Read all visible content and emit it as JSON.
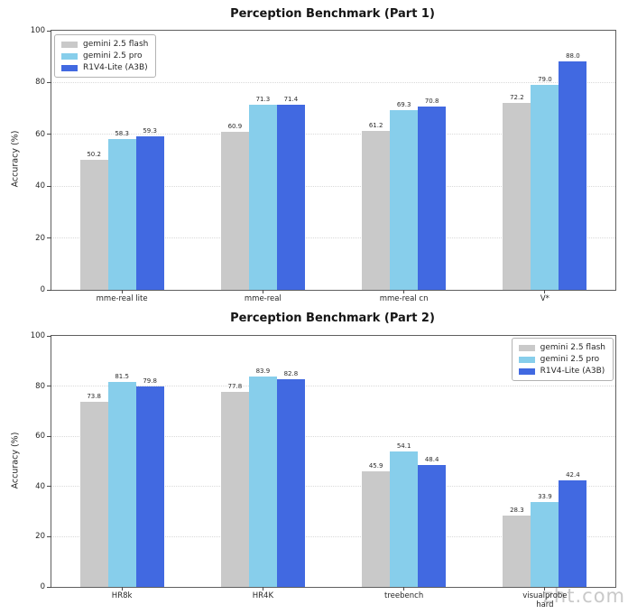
{
  "watermark": {
    "text": "zht.com"
  },
  "chart_data": [
    {
      "type": "bar",
      "title": "Perception Benchmark (Part 1)",
      "ylabel": "Accuracy (%)",
      "ylim": [
        0,
        100
      ],
      "yticks": [
        0,
        20,
        40,
        60,
        80,
        100
      ],
      "grid": "dotted-horizontal",
      "legend_position": "upper-left",
      "categories": [
        "mme-real lite",
        "mme-real",
        "mme-real cn",
        "V*"
      ],
      "series": [
        {
          "name": "gemini 2.5 flash",
          "color": "#c9c9c9",
          "values": [
            50.2,
            60.9,
            61.2,
            72.2
          ]
        },
        {
          "name": "gemini 2.5 pro",
          "color": "#87ceeb",
          "values": [
            58.3,
            71.3,
            69.3,
            79.0
          ]
        },
        {
          "name": "R1V4-Lite (A3B)",
          "color": "#4169e1",
          "values": [
            59.3,
            71.4,
            70.8,
            88.0
          ]
        }
      ]
    },
    {
      "type": "bar",
      "title": "Perception Benchmark (Part 2)",
      "ylabel": "Accuracy (%)",
      "ylim": [
        0,
        100
      ],
      "yticks": [
        0,
        20,
        40,
        60,
        80,
        100
      ],
      "grid": "dotted-horizontal",
      "legend_position": "upper-right",
      "categories": [
        "HR8k",
        "HR4K",
        "treebench",
        "visualprobe\nhard"
      ],
      "series": [
        {
          "name": "gemini 2.5 flash",
          "color": "#c9c9c9",
          "values": [
            73.8,
            77.8,
            45.9,
            28.3
          ]
        },
        {
          "name": "gemini 2.5 pro",
          "color": "#87ceeb",
          "values": [
            81.5,
            83.9,
            54.1,
            33.9
          ]
        },
        {
          "name": "R1V4-Lite (A3B)",
          "color": "#4169e1",
          "values": [
            79.8,
            82.8,
            48.4,
            42.4
          ]
        }
      ]
    }
  ]
}
